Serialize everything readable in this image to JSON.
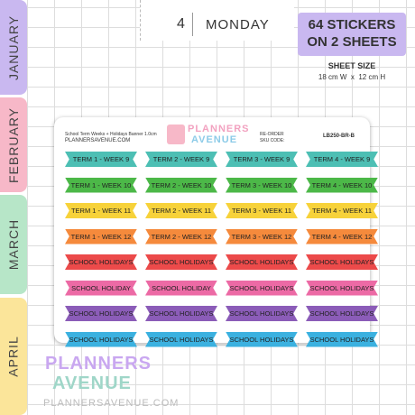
{
  "tabs": [
    "JANUARY",
    "FEBRUARY",
    "MARCH",
    "APRIL"
  ],
  "planner": {
    "day_number": "4",
    "day_name": "MONDAY"
  },
  "badge": {
    "line1": "64 STICKERS",
    "line2": "ON 2 SHEETS"
  },
  "sheet_size": {
    "label": "SHEET SIZE",
    "value": "18 cm W  x  12 cm H"
  },
  "sheet": {
    "description": "School Term Weeks + Holidays Banner 1.0cm",
    "website": "PLANNERSAVENUE.COM",
    "logo_top": "PLANNERS",
    "logo_bottom": "AVENUE",
    "reorder": "RE-ORDER",
    "sku_label": "SKU CODE:",
    "sku": "LB250-BR-B"
  },
  "stickers": {
    "rows": [
      {
        "color": "#4dbfb4",
        "labels": [
          "TERM 1 - WEEK 9",
          "TERM 2 - WEEK 9",
          "TERM 3 - WEEK 9",
          "TERM 4 - WEEK 9"
        ]
      },
      {
        "color": "#4cb848",
        "labels": [
          "TERM 1 - WEEK 10",
          "TERM 2 - WEEK 10",
          "TERM 3 - WEEK 10",
          "TERM 4 - WEEK 10"
        ]
      },
      {
        "color": "#f7d23a",
        "labels": [
          "TERM 1 - WEEK 11",
          "TERM 2 - WEEK 11",
          "TERM 3 - WEEK 11",
          "TERM 4 - WEEK 11"
        ]
      },
      {
        "color": "#f58a3c",
        "labels": [
          "TERM 1 - WEEK 12",
          "TERM 2 - WEEK 12",
          "TERM 3 - WEEK 12",
          "TERM 4 - WEEK 12"
        ]
      },
      {
        "color": "#ec4a4a",
        "labels": [
          "SCHOOL HOLIDAYS",
          "SCHOOL HOLIDAYS",
          "SCHOOL HOLIDAYS",
          "SCHOOL HOLIDAYS"
        ]
      },
      {
        "color": "#ec6aa5",
        "labels": [
          "SCHOOL HOLIDAY",
          "SCHOOL HOLIDAY",
          "SCHOOL HOLIDAYS",
          "SCHOOL HOLIDAYS"
        ]
      },
      {
        "color": "#8b5cb8",
        "labels": [
          "SCHOOL HOLIDAYS",
          "SCHOOL HOLIDAYS",
          "SCHOOL HOLIDAYS",
          "SCHOOL HOLIDAYS"
        ]
      },
      {
        "color": "#3bb1e0",
        "labels": [
          "SCHOOL HOLIDAYS",
          "SCHOOL HOLIDAYS",
          "SCHOOL HOLIDAYS",
          "SCHOOL HOLIDAYS"
        ]
      }
    ]
  },
  "footer": {
    "logo_top": "PLANNERS",
    "logo_bottom": "AVENUE",
    "website": "PLANNERSAVENUE.COM"
  }
}
